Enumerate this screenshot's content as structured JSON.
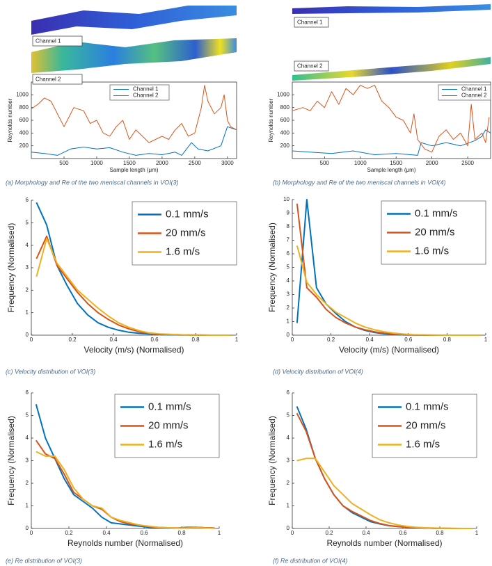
{
  "chart_data": [
    {
      "type": "line",
      "caption": "(a) Morphology and Re of the two meniscal channels in VOI(3)",
      "annotations": [
        "Channel 1",
        "Channel 2"
      ],
      "xlabel": "Sample length (μm)",
      "ylabel": "Reynolds number",
      "xlim": [
        0,
        3140
      ],
      "ylim": [
        0,
        1200
      ],
      "xticks": [
        500,
        1000,
        1500,
        2000,
        2500,
        3000
      ],
      "yticks": [
        200,
        400,
        600,
        800,
        1000
      ],
      "legend": "upper center",
      "grid": false,
      "series": [
        {
          "name": "Channel 1",
          "color": "#0072bd",
          "x": [
            0,
            200,
            400,
            600,
            800,
            1000,
            1200,
            1400,
            1600,
            1800,
            2000,
            2200,
            2300,
            2450,
            2550,
            2700,
            2900,
            3000,
            3140
          ],
          "values": [
            100,
            80,
            50,
            150,
            180,
            150,
            170,
            100,
            50,
            80,
            60,
            100,
            50,
            250,
            150,
            120,
            200,
            500,
            450
          ]
        },
        {
          "name": "Channel 2",
          "color": "#d95319",
          "x": [
            0,
            100,
            200,
            300,
            400,
            500,
            550,
            650,
            800,
            900,
            1000,
            1100,
            1200,
            1300,
            1400,
            1500,
            1600,
            1700,
            1800,
            1900,
            2000,
            2100,
            2200,
            2300,
            2400,
            2500,
            2600,
            2650,
            2700,
            2800,
            2900,
            2950,
            3000,
            3050,
            3140
          ],
          "values": [
            780,
            850,
            950,
            900,
            700,
            500,
            600,
            800,
            750,
            550,
            600,
            400,
            350,
            500,
            600,
            300,
            450,
            350,
            250,
            300,
            350,
            300,
            450,
            550,
            350,
            400,
            800,
            1150,
            900,
            700,
            800,
            1000,
            600,
            500,
            450
          ]
        }
      ]
    },
    {
      "type": "line",
      "caption": "(b) Morphology and Re of the two meniscal channels in VOI(4)",
      "annotations": [
        "Channel 1",
        "Channel 2"
      ],
      "xlabel": "Sample length (μm)",
      "ylabel": "Reynolds number",
      "xlim": [
        50,
        2820
      ],
      "ylim": [
        0,
        1200
      ],
      "xticks": [
        500,
        1000,
        1500,
        2000,
        2500
      ],
      "yticks": [
        200,
        400,
        600,
        800,
        1000
      ],
      "legend": "upper right",
      "grid": false,
      "series": [
        {
          "name": "Channel 1",
          "color": "#0072bd",
          "x": [
            50,
            300,
            600,
            900,
            1200,
            1500,
            1800,
            1850,
            2000,
            2200,
            2400,
            2600,
            2700,
            2750,
            2820
          ],
          "values": [
            120,
            100,
            80,
            120,
            60,
            80,
            50,
            250,
            200,
            250,
            200,
            280,
            350,
            450,
            400
          ]
        },
        {
          "name": "Channel 2",
          "color": "#d95319",
          "x": [
            50,
            200,
            300,
            400,
            500,
            600,
            700,
            800,
            900,
            1000,
            1100,
            1200,
            1300,
            1400,
            1500,
            1600,
            1700,
            1750,
            1800,
            1900,
            2000,
            2100,
            2200,
            2300,
            2400,
            2500,
            2550,
            2600,
            2700,
            2750,
            2800
          ],
          "values": [
            750,
            800,
            750,
            900,
            800,
            1050,
            850,
            1100,
            1000,
            1150,
            1100,
            1150,
            900,
            800,
            650,
            600,
            400,
            700,
            300,
            150,
            100,
            350,
            450,
            300,
            400,
            200,
            850,
            300,
            400,
            250,
            650
          ]
        }
      ]
    },
    {
      "type": "line",
      "caption": "(c) Velocity distribution of VOI(3)",
      "xlabel": "Velocity (m/s) (Normalised)",
      "ylabel": "Frequency (Normalised)",
      "xlim": [
        0,
        1
      ],
      "ylim": [
        0,
        6
      ],
      "xticks": [
        0,
        0.2,
        0.4,
        0.6,
        0.8,
        1
      ],
      "yticks": [
        0,
        1,
        2,
        3,
        4,
        5,
        6
      ],
      "legend": "upper right",
      "grid": false,
      "series": [
        {
          "name": "0.1 mm/s",
          "color": "#0072bd",
          "x": [
            0.025,
            0.075,
            0.125,
            0.175,
            0.225,
            0.275,
            0.325,
            0.375,
            0.425,
            0.475,
            0.525,
            0.575,
            0.625,
            0.675,
            0.725,
            0.775,
            0.825,
            0.875,
            0.925,
            0.975
          ],
          "values": [
            5.9,
            4.9,
            3.1,
            2.2,
            1.4,
            0.9,
            0.55,
            0.35,
            0.22,
            0.13,
            0.08,
            0.05,
            0.03,
            0.02,
            0.01,
            0.01,
            0,
            0,
            0,
            0
          ]
        },
        {
          "name": "20 mm/s",
          "color": "#d95319",
          "x": [
            0.025,
            0.075,
            0.125,
            0.175,
            0.225,
            0.275,
            0.325,
            0.375,
            0.425,
            0.475,
            0.525,
            0.575,
            0.625,
            0.675,
            0.725,
            0.775,
            0.825,
            0.875,
            0.925,
            0.975
          ],
          "values": [
            3.4,
            4.4,
            3.1,
            2.5,
            1.9,
            1.4,
            1.0,
            0.7,
            0.45,
            0.28,
            0.15,
            0.08,
            0.05,
            0.03,
            0.02,
            0.01,
            0.01,
            0,
            0,
            0
          ]
        },
        {
          "name": "1.6 m/s",
          "color": "#edb120",
          "x": [
            0.025,
            0.075,
            0.125,
            0.175,
            0.225,
            0.275,
            0.325,
            0.375,
            0.425,
            0.475,
            0.525,
            0.575,
            0.625,
            0.675,
            0.725,
            0.775,
            0.825,
            0.875,
            0.925,
            0.975
          ],
          "values": [
            2.6,
            4.3,
            3.2,
            2.6,
            2.0,
            1.6,
            1.2,
            0.85,
            0.55,
            0.35,
            0.2,
            0.1,
            0.06,
            0.04,
            0.02,
            0.01,
            0.01,
            0,
            0,
            0
          ]
        }
      ]
    },
    {
      "type": "line",
      "caption": "(d) Velocity distribution of VOI(4)",
      "xlabel": "Velocity (m/s) (Normalised)",
      "ylabel": "Frequency (Normalised)",
      "xlim": [
        0,
        1
      ],
      "ylim": [
        0,
        10
      ],
      "xticks": [
        0,
        0.2,
        0.4,
        0.6,
        0.8,
        1
      ],
      "yticks": [
        0,
        1,
        2,
        3,
        4,
        5,
        6,
        7,
        8,
        9,
        10
      ],
      "legend": "upper right",
      "grid": false,
      "series": [
        {
          "name": "0.1 mm/s",
          "color": "#0072bd",
          "x": [
            0.025,
            0.075,
            0.125,
            0.175,
            0.225,
            0.275,
            0.325,
            0.375,
            0.425,
            0.475,
            0.525,
            0.575,
            0.625,
            0.675,
            0.725,
            0.775,
            0.825,
            0.875,
            0.925,
            0.975
          ],
          "values": [
            0.9,
            10,
            3.5,
            2.3,
            1.6,
            1.0,
            0.6,
            0.35,
            0.2,
            0.1,
            0.05,
            0.02,
            0.01,
            0,
            0,
            0,
            0,
            0,
            0,
            0
          ]
        },
        {
          "name": "20 mm/s",
          "color": "#d95319",
          "x": [
            0.025,
            0.075,
            0.125,
            0.175,
            0.225,
            0.275,
            0.325,
            0.375,
            0.425,
            0.475,
            0.525,
            0.575,
            0.625,
            0.675,
            0.725,
            0.775,
            0.825,
            0.875,
            0.925,
            0.975
          ],
          "values": [
            9.7,
            3.5,
            2.8,
            1.9,
            1.3,
            0.9,
            0.6,
            0.4,
            0.25,
            0.15,
            0.08,
            0.04,
            0.02,
            0.01,
            0,
            0,
            0,
            0,
            0,
            0
          ]
        },
        {
          "name": "1.6 m/s",
          "color": "#edb120",
          "x": [
            0.025,
            0.075,
            0.125,
            0.175,
            0.225,
            0.275,
            0.325,
            0.375,
            0.425,
            0.475,
            0.525,
            0.575,
            0.625,
            0.675,
            0.725,
            0.775,
            0.825,
            0.875,
            0.925,
            0.975
          ],
          "values": [
            6.6,
            3.9,
            3.0,
            2.3,
            1.7,
            1.3,
            0.9,
            0.6,
            0.4,
            0.25,
            0.15,
            0.08,
            0.04,
            0.02,
            0.01,
            0,
            0,
            0,
            0,
            0
          ]
        }
      ]
    },
    {
      "type": "line",
      "caption": "(e) Re distribution of VOI(3)",
      "xlabel": "Reynolds number (Normalised)",
      "ylabel": "Frequency (Normalised)",
      "xlim": [
        0,
        1
      ],
      "ylim": [
        0,
        6
      ],
      "xticks": [
        0,
        0.2,
        0.4,
        0.6,
        0.8,
        1
      ],
      "yticks": [
        0,
        1,
        2,
        3,
        4,
        5,
        6
      ],
      "legend": "upper right",
      "grid": false,
      "series": [
        {
          "name": "0.1 mm/s",
          "color": "#0072bd",
          "x": [
            0.025,
            0.075,
            0.125,
            0.175,
            0.225,
            0.275,
            0.325,
            0.375,
            0.425,
            0.475,
            0.525,
            0.575,
            0.625,
            0.675,
            0.725,
            0.775,
            0.825,
            0.875,
            0.925,
            0.975
          ],
          "values": [
            5.5,
            4.0,
            3.1,
            2.2,
            1.5,
            1.2,
            0.9,
            0.5,
            0.25,
            0.2,
            0.15,
            0.1,
            0.05,
            0.03,
            0.02,
            0.02,
            0.05,
            0.05,
            0.03,
            0.02
          ]
        },
        {
          "name": "20 mm/s",
          "color": "#d95319",
          "x": [
            0.025,
            0.075,
            0.125,
            0.175,
            0.225,
            0.275,
            0.325,
            0.375,
            0.425,
            0.475,
            0.525,
            0.575,
            0.625,
            0.675,
            0.725,
            0.775,
            0.825,
            0.875,
            0.925,
            0.975
          ],
          "values": [
            3.9,
            3.3,
            3.1,
            2.4,
            1.6,
            1.3,
            1.0,
            0.85,
            0.5,
            0.3,
            0.2,
            0.15,
            0.08,
            0.05,
            0.03,
            0.02,
            0.02,
            0.05,
            0.03,
            0.02
          ]
        },
        {
          "name": "1.6 m/s",
          "color": "#edb120",
          "x": [
            0.025,
            0.075,
            0.125,
            0.175,
            0.225,
            0.275,
            0.325,
            0.375,
            0.425,
            0.475,
            0.525,
            0.575,
            0.625,
            0.675,
            0.725,
            0.775,
            0.825,
            0.875,
            0.925,
            0.975
          ],
          "values": [
            3.4,
            3.2,
            3.2,
            2.6,
            1.8,
            1.3,
            1.0,
            0.9,
            0.5,
            0.35,
            0.25,
            0.15,
            0.1,
            0.05,
            0.03,
            0.02,
            0.02,
            0.03,
            0.02,
            0.01
          ]
        }
      ]
    },
    {
      "type": "line",
      "caption": "(f) Re distribution of VOI(4)",
      "xlabel": "Reynolds number (Normalised)",
      "ylabel": "Frequency (Normalised)",
      "xlim": [
        0,
        1
      ],
      "ylim": [
        0,
        6
      ],
      "xticks": [
        0,
        0.2,
        0.4,
        0.6,
        0.8,
        1
      ],
      "yticks": [
        0,
        1,
        2,
        3,
        4,
        5,
        6
      ],
      "legend": "upper right",
      "grid": false,
      "series": [
        {
          "name": "0.1 mm/s",
          "color": "#0072bd",
          "x": [
            0.025,
            0.075,
            0.125,
            0.175,
            0.225,
            0.275,
            0.325,
            0.375,
            0.425,
            0.475,
            0.525,
            0.575,
            0.625,
            0.675,
            0.725,
            0.775,
            0.825,
            0.875,
            0.925,
            0.975
          ],
          "values": [
            5.4,
            4.4,
            3.1,
            2.2,
            1.5,
            1.0,
            0.7,
            0.5,
            0.3,
            0.2,
            0.12,
            0.08,
            0.05,
            0.03,
            0.02,
            0.01,
            0.01,
            0,
            0,
            0
          ]
        },
        {
          "name": "20 mm/s",
          "color": "#d95319",
          "x": [
            0.025,
            0.075,
            0.125,
            0.175,
            0.225,
            0.275,
            0.325,
            0.375,
            0.425,
            0.475,
            0.525,
            0.575,
            0.625,
            0.675,
            0.725,
            0.775,
            0.825,
            0.875,
            0.925,
            0.975
          ],
          "values": [
            5.1,
            4.3,
            3.1,
            2.2,
            1.5,
            1.0,
            0.75,
            0.55,
            0.35,
            0.22,
            0.13,
            0.08,
            0.05,
            0.03,
            0.02,
            0.01,
            0.01,
            0,
            0,
            0
          ]
        },
        {
          "name": "1.6 m/s",
          "color": "#edb120",
          "x": [
            0.025,
            0.075,
            0.125,
            0.175,
            0.225,
            0.275,
            0.325,
            0.375,
            0.425,
            0.475,
            0.525,
            0.575,
            0.625,
            0.675,
            0.725,
            0.775,
            0.825,
            0.875,
            0.925,
            0.975
          ],
          "values": [
            3.0,
            3.1,
            3.1,
            2.5,
            1.9,
            1.5,
            1.1,
            0.85,
            0.6,
            0.38,
            0.25,
            0.15,
            0.09,
            0.05,
            0.03,
            0.02,
            0.01,
            0.01,
            0,
            0
          ]
        }
      ]
    }
  ]
}
